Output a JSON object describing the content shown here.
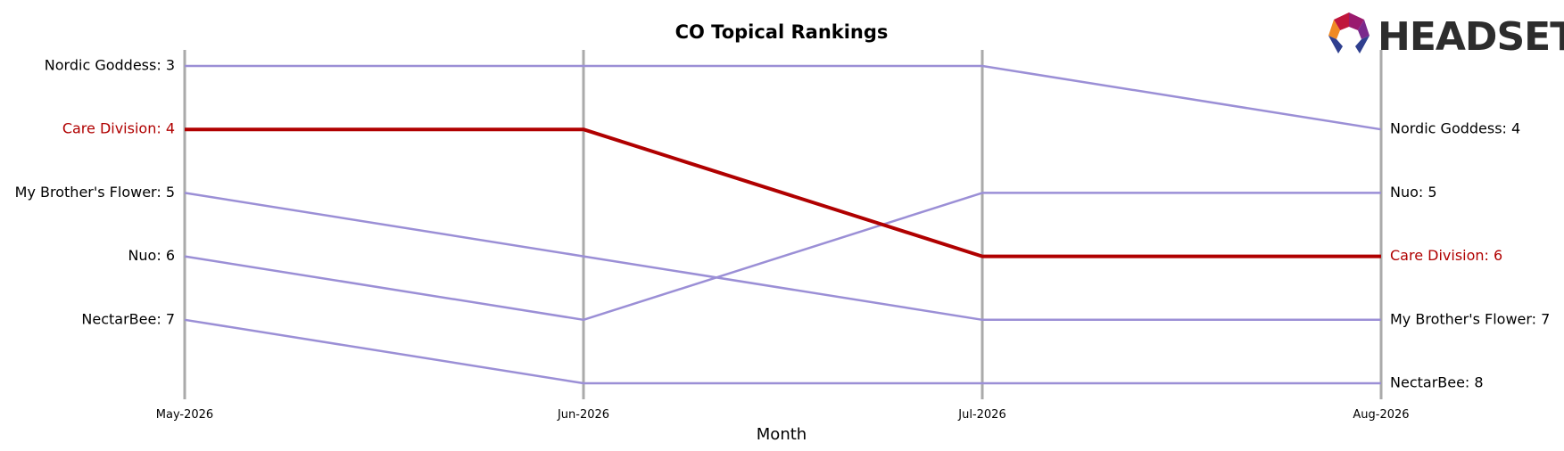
{
  "chart_data": {
    "type": "line",
    "title": "CO Topical Rankings",
    "xlabel": "Month",
    "ylabel": "",
    "categories": [
      "May-2026",
      "Jun-2026",
      "Jul-2026",
      "Aug-2026"
    ],
    "y_inverted": true,
    "ylim": [
      3,
      8
    ],
    "grid": false,
    "highlight_series": "Care Division",
    "colors": {
      "default": "#9b8fd6",
      "highlight": "#b00000",
      "axis_line": "#aaaaaa"
    },
    "series": [
      {
        "name": "Nordic Goddess",
        "values": [
          3,
          3,
          3,
          4
        ]
      },
      {
        "name": "Care Division",
        "values": [
          4,
          4,
          6,
          6
        ]
      },
      {
        "name": "My Brother's Flower",
        "values": [
          5,
          6,
          7,
          7
        ]
      },
      {
        "name": "Nuo",
        "values": [
          6,
          7,
          5,
          5
        ]
      },
      {
        "name": "NectarBee",
        "values": [
          7,
          8,
          8,
          8
        ]
      }
    ],
    "left_labels": [
      {
        "text": "Nordic Goddess: 3",
        "series": "Nordic Goddess",
        "rank": 3
      },
      {
        "text": "Care Division: 4",
        "series": "Care Division",
        "rank": 4
      },
      {
        "text": "My Brother's Flower: 5",
        "series": "My Brother's Flower",
        "rank": 5
      },
      {
        "text": "Nuo: 6",
        "series": "Nuo",
        "rank": 6
      },
      {
        "text": "NectarBee: 7",
        "series": "NectarBee",
        "rank": 7
      }
    ],
    "right_labels": [
      {
        "text": "Nordic Goddess: 4",
        "series": "Nordic Goddess",
        "rank": 4
      },
      {
        "text": "Nuo: 5",
        "series": "Nuo",
        "rank": 5
      },
      {
        "text": "Care Division: 6",
        "series": "Care Division",
        "rank": 6
      },
      {
        "text": "My Brother's Flower: 7",
        "series": "My Brother's Flower",
        "rank": 7
      },
      {
        "text": "NectarBee: 8",
        "series": "NectarBee",
        "rank": 8
      }
    ]
  },
  "logo": {
    "text": "HEADSET",
    "icon": "headset-logo-icon"
  }
}
